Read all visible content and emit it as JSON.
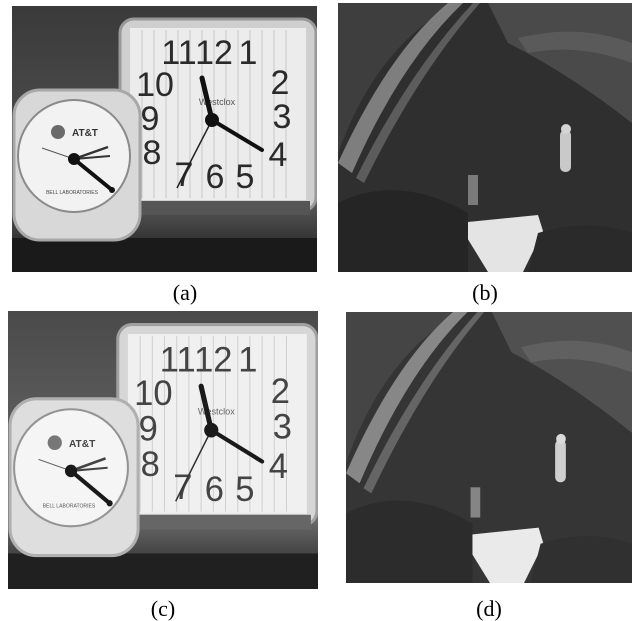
{
  "figure": {
    "panels": [
      {
        "id": "a",
        "caption": "(a)",
        "scene": "clocks"
      },
      {
        "id": "b",
        "caption": "(b)",
        "scene": "garden-landscape"
      },
      {
        "id": "c",
        "caption": "(c)",
        "scene": "clocks"
      },
      {
        "id": "d",
        "caption": "(d)",
        "scene": "garden-landscape"
      }
    ],
    "clock_text": {
      "small_brand": "AT&T",
      "small_sub": "BELL LABORATORIES",
      "big_brand": "Westclox",
      "numbers": [
        "11",
        "12",
        "1",
        "10",
        "2",
        "9",
        "3",
        "8",
        "4",
        "7",
        "6",
        "5"
      ]
    }
  }
}
